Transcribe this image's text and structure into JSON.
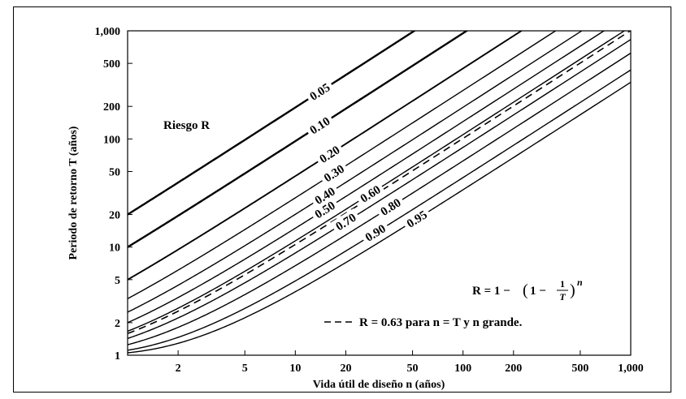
{
  "chart_data": {
    "type": "line",
    "xscale": "log",
    "yscale": "log",
    "xlim": [
      1,
      1000
    ],
    "ylim": [
      1,
      1000
    ],
    "xlabel": "Vida útil de diseño n (años)",
    "ylabel": "Periodo de retorno T (años)",
    "xticks": [
      "2",
      "5",
      "10",
      "20",
      "50",
      "100",
      "200",
      "500",
      "1,000"
    ],
    "yticks": [
      "1",
      "2",
      "5",
      "10",
      "20",
      "50",
      "100",
      "200",
      "500",
      "1,000"
    ],
    "risk_label": "Riesgo R",
    "formula": {
      "lhs": "R = 1 −",
      "lparen": "(",
      "one": "1 −",
      "frac_num": "1",
      "frac_den": "T",
      "rparen": ")",
      "exp": "n"
    },
    "dashed_legend": "R = 0.63 para n = T y n grande.",
    "series": [
      {
        "name": "0.05",
        "R": 0.05
      },
      {
        "name": "0.10",
        "R": 0.1
      },
      {
        "name": "0.20",
        "R": 0.2
      },
      {
        "name": "0.30",
        "R": 0.3
      },
      {
        "name": "0.40",
        "R": 0.4
      },
      {
        "name": "0.50",
        "R": 0.5
      },
      {
        "name": "0.60",
        "R": 0.6
      },
      {
        "name": "0.70",
        "R": 0.7
      },
      {
        "name": "0.80",
        "R": 0.8
      },
      {
        "name": "0.90",
        "R": 0.9
      },
      {
        "name": "0.95",
        "R": 0.95
      }
    ],
    "dashed_series": {
      "R": 0.63
    }
  }
}
